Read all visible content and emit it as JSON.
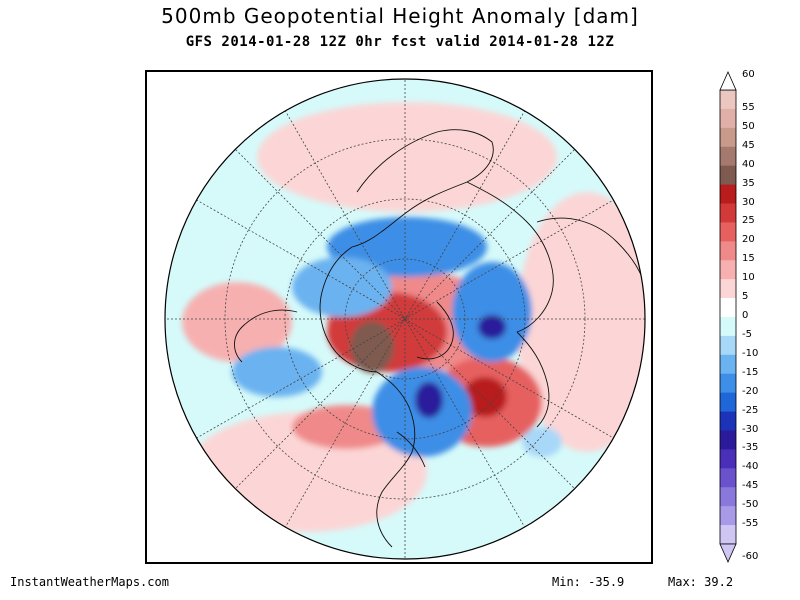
{
  "header": {
    "title": "500mb Geopotential Height Anomaly [dam]",
    "subtitle": "GFS 2014-01-28 12Z 0hr fcst valid 2014-01-28 12Z"
  },
  "colorbar": {
    "levels": [
      "60",
      "55",
      "50",
      "45",
      "40",
      "35",
      "30",
      "25",
      "20",
      "15",
      "10",
      "5",
      "0",
      "-5",
      "-10",
      "-15",
      "-20",
      "-25",
      "-30",
      "-35",
      "-40",
      "-45",
      "-50",
      "-55",
      "-60"
    ],
    "colors": [
      "#fbe6e6",
      "#ecc6c0",
      "#e0b0a8",
      "#c89a8c",
      "#a57a6e",
      "#7f5a50",
      "#b81c1c",
      "#d23a3a",
      "#e66060",
      "#f08a8a",
      "#f7b0b0",
      "#fcd6d6",
      "#ffffff",
      "#d6fafa",
      "#a8d8f8",
      "#6ab2f0",
      "#3c8ee6",
      "#1f66d8",
      "#1c32b8",
      "#2b1a9a",
      "#4a2fb8",
      "#6a52cc",
      "#8a78dc",
      "#a99ae8",
      "#cfc6f4"
    ]
  },
  "map": {
    "projection": "north-polar-stereographic",
    "meridian_line_style": "dotted"
  },
  "footer": {
    "credit": "InstantWeatherMaps.com",
    "min_label": "Min:",
    "min_value": "-35.9",
    "max_label": "Max:",
    "max_value": "39.2"
  }
}
